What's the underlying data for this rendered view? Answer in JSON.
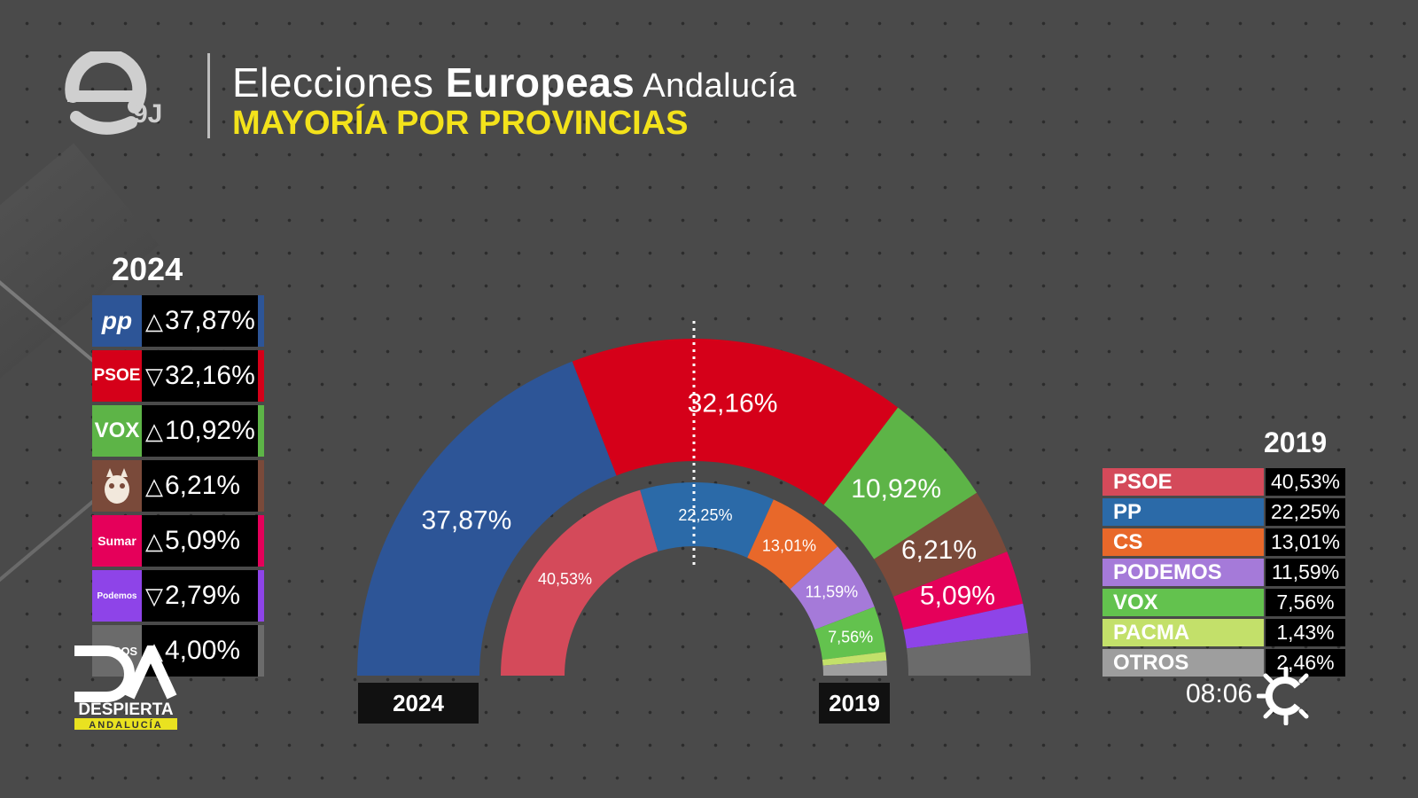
{
  "header": {
    "logo_tag": "9J",
    "title_part1": "Elecciones ",
    "title_part2": "Europeas",
    "title_part3": " Andalucía",
    "subtitle": "MAYORÍA POR PROVINCIAS"
  },
  "left_panel": {
    "year": "2024",
    "rows": [
      {
        "party": "PP",
        "logo_text": "pp",
        "arrow": "△",
        "value": "37,87%",
        "color": "#2d5597"
      },
      {
        "party": "PSOE",
        "logo_text": "PSOE",
        "arrow": "▽",
        "value": "32,16%",
        "color": "#d50019"
      },
      {
        "party": "VOX",
        "logo_text": "VOX",
        "arrow": "△",
        "value": "10,92%",
        "color": "#5db447"
      },
      {
        "party": "SALF",
        "logo_text": "",
        "arrow": "△",
        "value": "6,21%",
        "color": "#7a4a3a"
      },
      {
        "party": "Sumar",
        "logo_text": "Sumar",
        "arrow": "△",
        "value": "5,09%",
        "color": "#e5005a"
      },
      {
        "party": "Podemos",
        "logo_text": "Podemos",
        "arrow": "▽",
        "value": "2,79%",
        "color": "#8e44e8"
      },
      {
        "party": "OTROS",
        "logo_text": "OTROS",
        "arrow": "△",
        "value": "4,00%",
        "color": "#6b6b6b"
      }
    ]
  },
  "chart_data": [
    {
      "type": "pie",
      "title": "2024",
      "series": [
        {
          "name": "PP",
          "value": 37.87,
          "label": "37,87%",
          "color": "#2d5597"
        },
        {
          "name": "PSOE",
          "value": 32.16,
          "label": "32,16%",
          "color": "#d50019"
        },
        {
          "name": "VOX",
          "value": 10.92,
          "label": "10,92%",
          "color": "#5db447"
        },
        {
          "name": "SALF",
          "value": 6.21,
          "label": "6,21%",
          "color": "#7a4a3a"
        },
        {
          "name": "Sumar",
          "value": 5.09,
          "label": "5,09%",
          "color": "#e5005a"
        },
        {
          "name": "Podemos",
          "value": 2.79,
          "label": "",
          "color": "#8e44e8"
        },
        {
          "name": "OTROS",
          "value": 4.0,
          "label": "",
          "color": "#6b6b6b"
        }
      ]
    },
    {
      "type": "pie",
      "title": "2019",
      "series": [
        {
          "name": "PSOE",
          "value": 40.53,
          "label": "40,53%",
          "color": "#d44a5a"
        },
        {
          "name": "PP",
          "value": 22.25,
          "label": "22,25%",
          "color": "#2b6aa8"
        },
        {
          "name": "CS",
          "value": 13.01,
          "label": "13,01%",
          "color": "#e8682a"
        },
        {
          "name": "PODEMOS",
          "value": 11.59,
          "label": "11,59%",
          "color": "#a57ad9"
        },
        {
          "name": "VOX",
          "value": 7.56,
          "label": "7,56%",
          "color": "#63c24e"
        },
        {
          "name": "PACMA",
          "value": 1.43,
          "label": "",
          "color": "#c3e06a"
        },
        {
          "name": "OTROS",
          "value": 2.46,
          "label": "",
          "color": "#9e9e9e"
        }
      ]
    }
  ],
  "year_labels": {
    "outer": "2024",
    "inner": "2019"
  },
  "right_panel": {
    "year": "2019",
    "rows": [
      {
        "party": "PSOE",
        "value": "40,53%",
        "color": "#d44a5a"
      },
      {
        "party": "PP",
        "value": "22,25%",
        "color": "#2b6aa8"
      },
      {
        "party": "CS",
        "value": "13,01%",
        "color": "#e8682a"
      },
      {
        "party": "PODEMOS",
        "value": "11,59%",
        "color": "#a57ad9"
      },
      {
        "party": "VOX",
        "value": "7,56%",
        "color": "#63c24e"
      },
      {
        "party": "PACMA",
        "value": "1,43%",
        "color": "#c3e06a"
      },
      {
        "party": "OTROS",
        "value": "2,46%",
        "color": "#9e9e9e"
      }
    ]
  },
  "footer": {
    "time": "08:06",
    "show_logo_line1": "DESPIERTA",
    "show_logo_line2": "ANDALUCÍA"
  }
}
